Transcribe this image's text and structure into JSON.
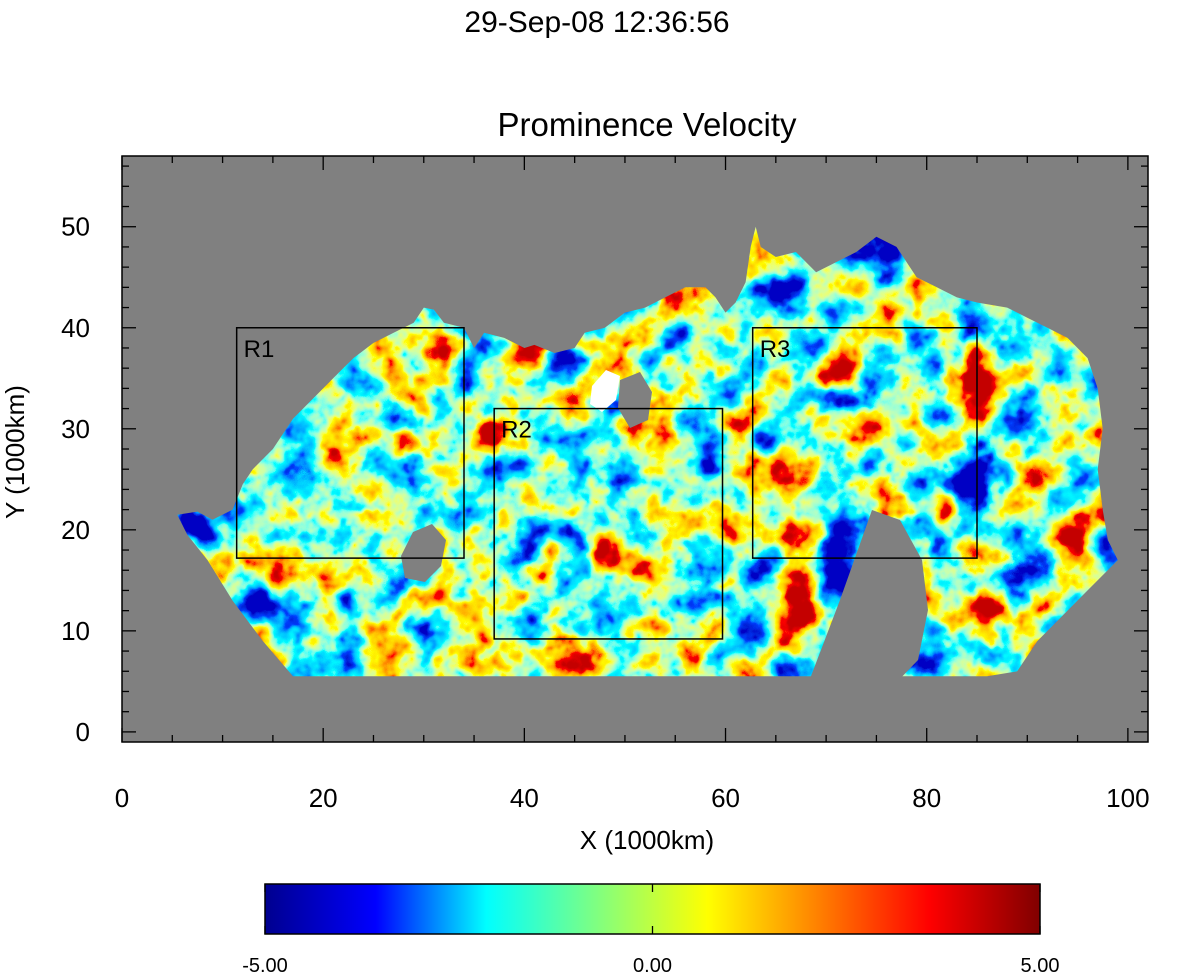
{
  "timestamp": "29-Sep-08 12:36:56",
  "chart_data": {
    "type": "heatmap",
    "title": "Prominence Velocity",
    "xlabel": "X (1000km)",
    "ylabel": "Y (1000km)",
    "xlim": [
      0,
      102
    ],
    "ylim": [
      -1,
      57
    ],
    "x_ticks": [
      0,
      20,
      40,
      60,
      80,
      100
    ],
    "y_ticks": [
      0,
      10,
      20,
      30,
      40,
      50
    ],
    "x_tick_labels": [
      "0",
      "20",
      "40",
      "60",
      "80",
      "100"
    ],
    "y_tick_labels": [
      "0",
      "10",
      "20",
      "30",
      "40",
      "50"
    ],
    "background_color": "#808080",
    "colormap": "jet",
    "colorbar": {
      "min": -5.0,
      "max": 5.0,
      "tick_labels": [
        "-5.00",
        "0.00",
        "5.00"
      ],
      "colors": [
        "#00008f",
        "#0000ff",
        "#00ffff",
        "#80ff80",
        "#ffff00",
        "#ff8000",
        "#ff0000",
        "#800000"
      ]
    },
    "regions": [
      {
        "label": "R1",
        "x0": 11.4,
        "x1": 34.0,
        "y0": 17.2,
        "y1": 40.0
      },
      {
        "label": "R2",
        "x0": 37.0,
        "x1": 59.7,
        "y0": 9.2,
        "y1": 32.0
      },
      {
        "label": "R3",
        "x0": 62.7,
        "x1": 85.0,
        "y0": 17.2,
        "y1": 40.0
      }
    ]
  }
}
